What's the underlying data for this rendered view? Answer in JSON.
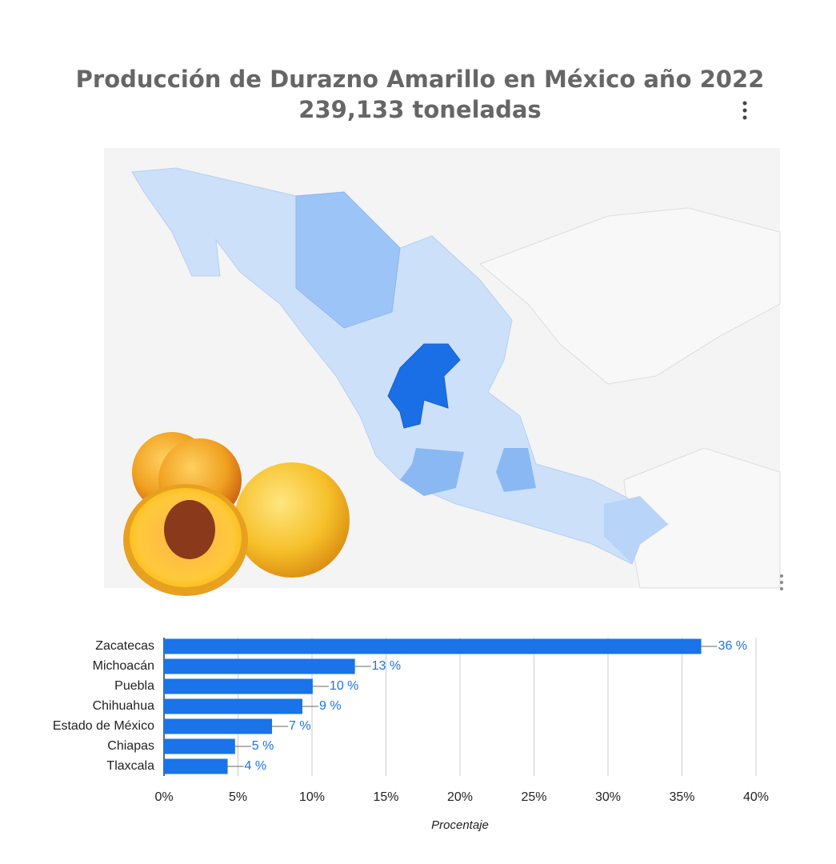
{
  "chart_data": {
    "type": "bar",
    "orientation": "horizontal",
    "title": "Producción de Durazno Amarillo en México año 2022",
    "subtitle": "239,133 toneladas",
    "categories": [
      "Zacatecas",
      "Michoacán",
      "Puebla",
      "Chihuahua",
      "Estado de México",
      "Chiapas",
      "Tlaxcala"
    ],
    "values": [
      36.3,
      12.9,
      10.05,
      9.35,
      7.3,
      4.8,
      4.3
    ],
    "value_labels": [
      "36 %",
      "13 %",
      "10 %",
      "9 %",
      "7 %",
      "5 %",
      "4 %"
    ],
    "color": "#1a73e8",
    "xlabel": "Procentaje",
    "xlim": [
      0,
      40
    ],
    "xticks": [
      {
        "value": 0,
        "label": "0%"
      },
      {
        "value": 5,
        "label": "5%"
      },
      {
        "value": 10,
        "label": "10%"
      },
      {
        "value": 15,
        "label": "15%"
      },
      {
        "value": 20,
        "label": "20%"
      },
      {
        "value": 25,
        "label": "25%"
      },
      {
        "value": 30,
        "label": "30%"
      },
      {
        "value": 35,
        "label": "35%"
      },
      {
        "value": 40,
        "label": "40%"
      }
    ],
    "grid": true
  }
}
